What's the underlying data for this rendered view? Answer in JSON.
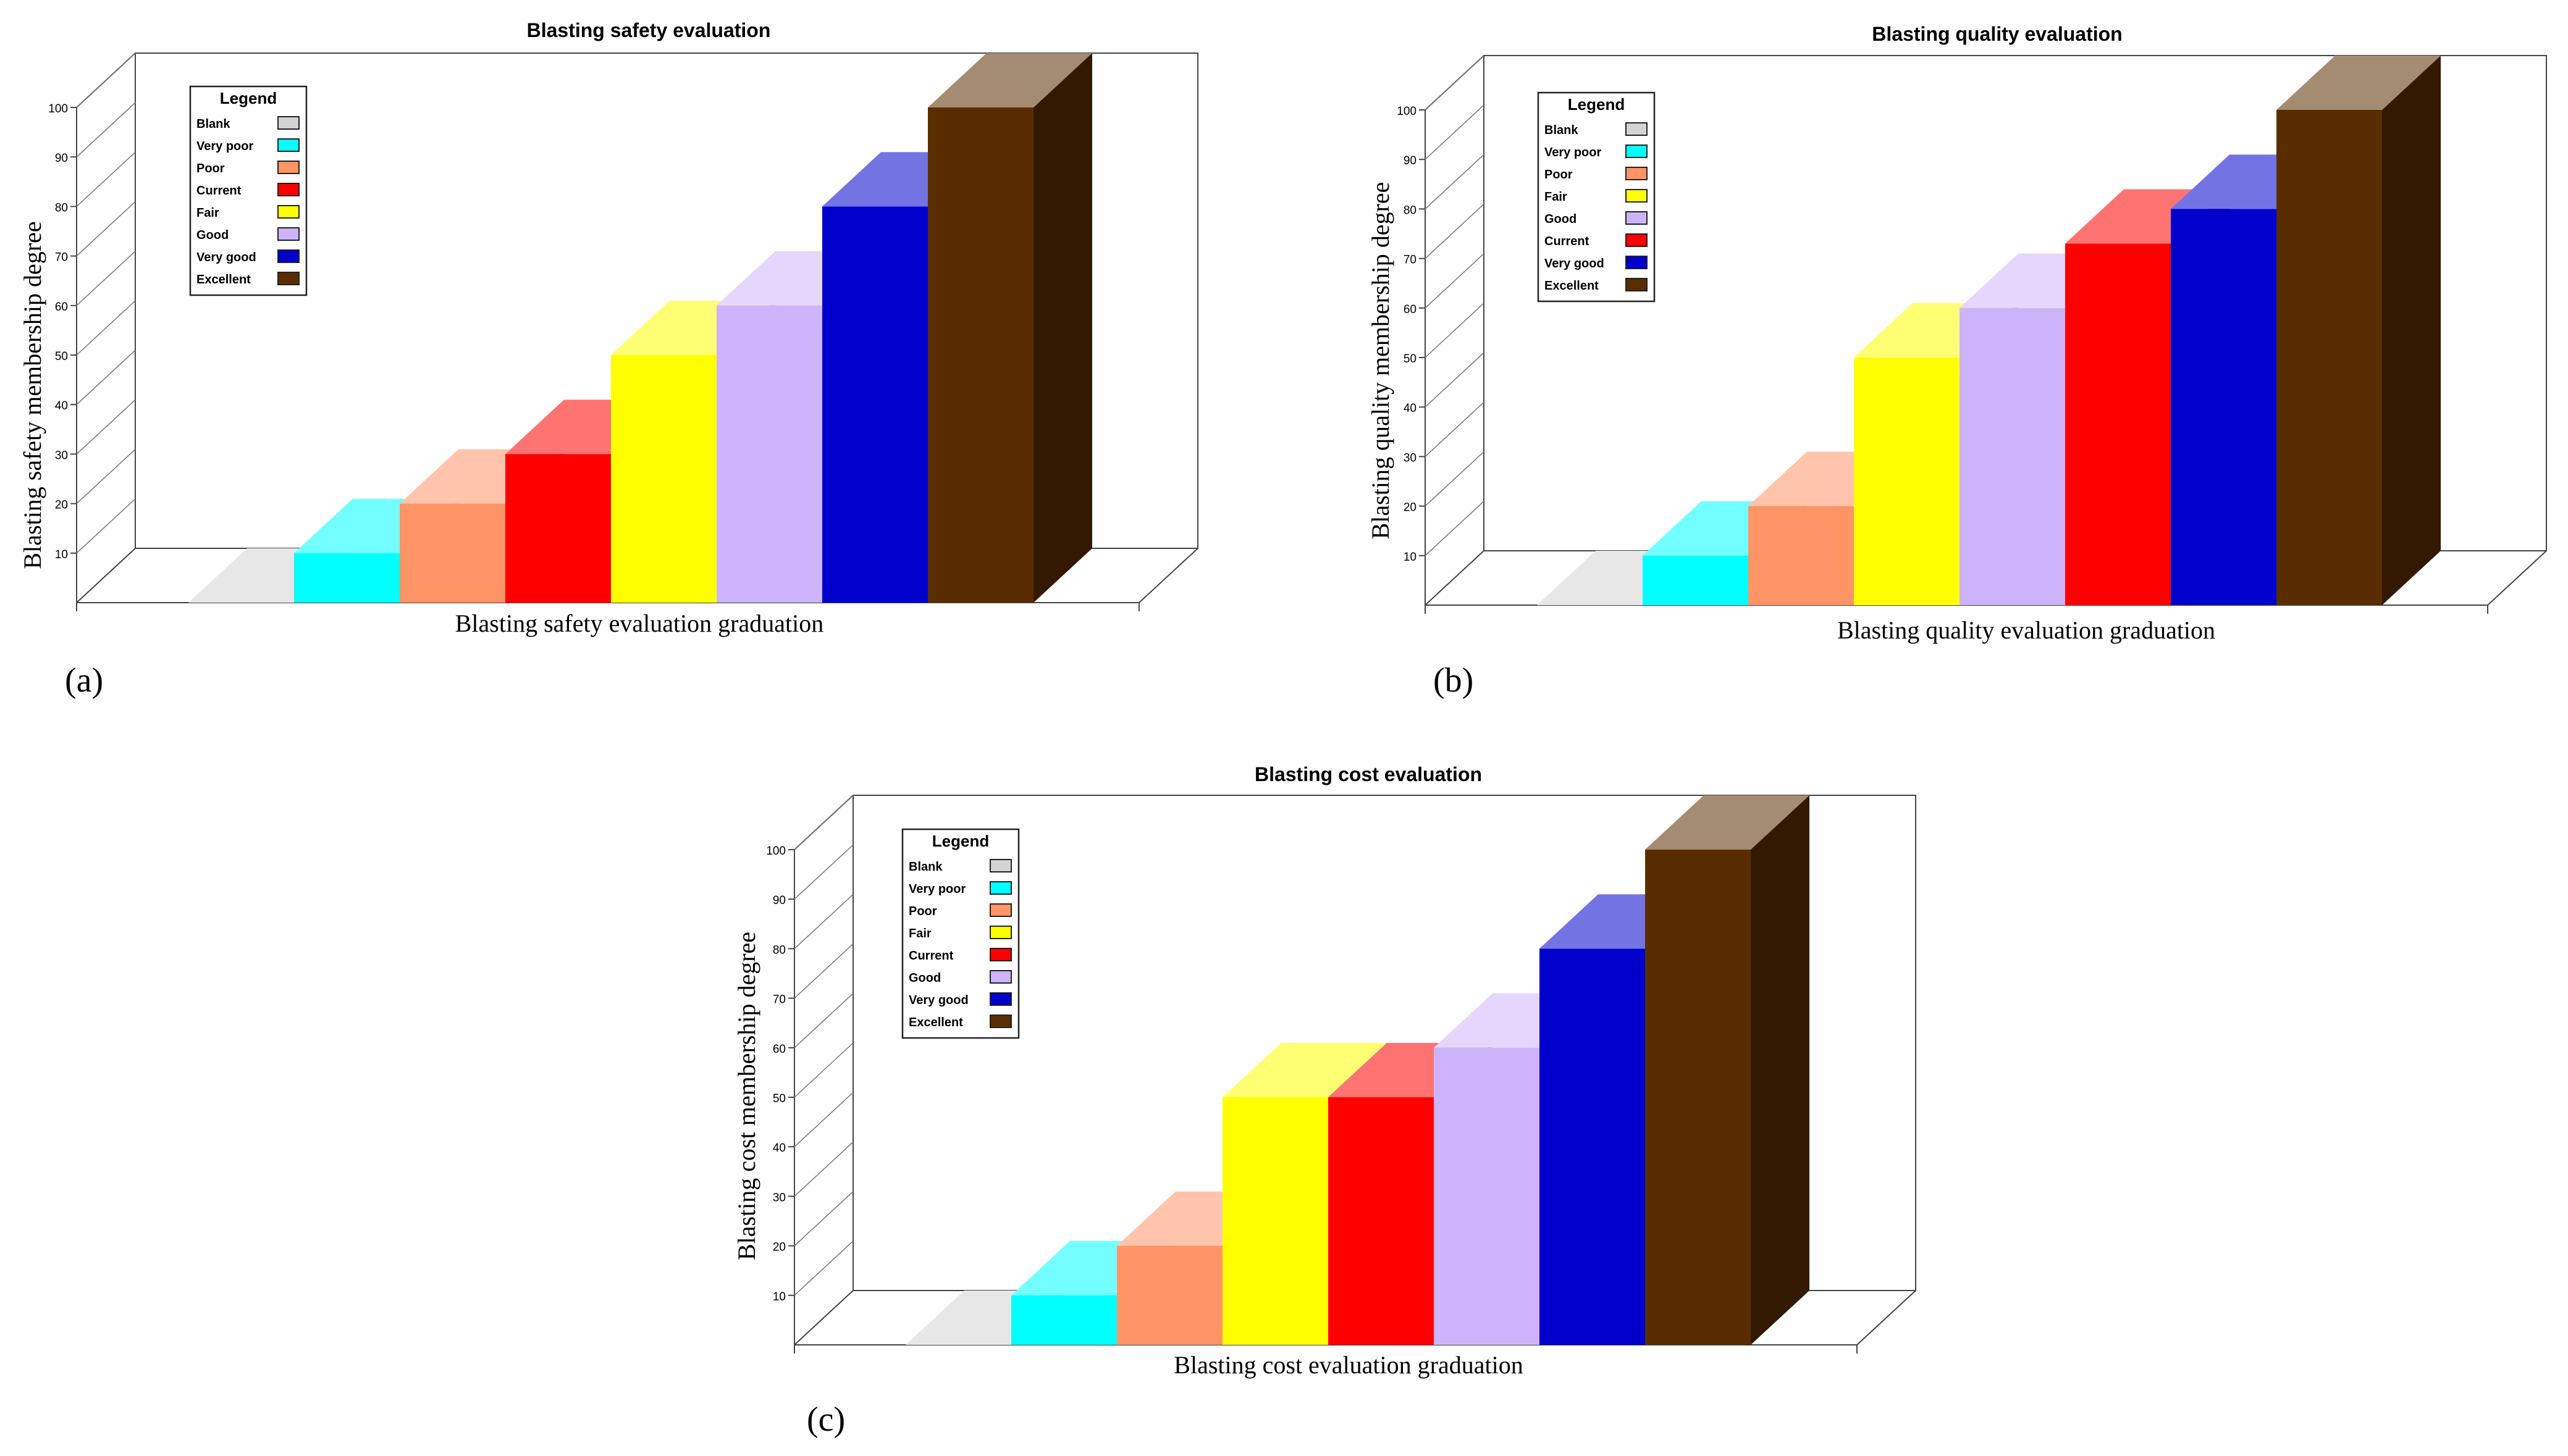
{
  "charts": [
    {
      "label": "(a)",
      "title": "Blasting safety evaluation",
      "xlabel": "Blasting safety evaluation  graduation",
      "ylabel": "Blasting safety membership degree",
      "legend_title": "Legend",
      "legend": [
        {
          "name": "Blank",
          "color": "#d3d3d3"
        },
        {
          "name": "Very poor",
          "color": "#00ffff"
        },
        {
          "name": "Poor",
          "color": "#ff9466"
        },
        {
          "name": "Current",
          "color": "#ff0000"
        },
        {
          "name": "Fair",
          "color": "#ffff00"
        },
        {
          "name": "Good",
          "color": "#cdb4fa"
        },
        {
          "name": "Very good",
          "color": "#0000cd"
        },
        {
          "name": "Excellent",
          "color": "#5a2d00"
        }
      ],
      "bars": [
        {
          "name": "Blank",
          "value": 0,
          "color": "#d3d3d3"
        },
        {
          "name": "Very poor",
          "value": 10,
          "color": "#00ffff"
        },
        {
          "name": "Poor",
          "value": 20,
          "color": "#ff9466"
        },
        {
          "name": "Current",
          "value": 30,
          "color": "#ff0000"
        },
        {
          "name": "Fair",
          "value": 50,
          "color": "#ffff00"
        },
        {
          "name": "Good",
          "value": 60,
          "color": "#cdb4fa"
        },
        {
          "name": "Very good",
          "value": 80,
          "color": "#0000cd"
        },
        {
          "name": "Excellent",
          "value": 100,
          "color": "#5a2d00"
        }
      ]
    },
    {
      "label": "(b)",
      "title": "Blasting quality evaluation",
      "xlabel": "Blasting quality  evaluation graduation",
      "ylabel": "Blasting quality membership degree",
      "legend_title": "Legend",
      "legend": [
        {
          "name": "Blank",
          "color": "#d3d3d3"
        },
        {
          "name": "Very poor",
          "color": "#00ffff"
        },
        {
          "name": "Poor",
          "color": "#ff9466"
        },
        {
          "name": "Fair",
          "color": "#ffff00"
        },
        {
          "name": "Good",
          "color": "#cdb4fa"
        },
        {
          "name": "Current",
          "color": "#ff0000"
        },
        {
          "name": "Very good",
          "color": "#0000cd"
        },
        {
          "name": "Excellent",
          "color": "#5a2d00"
        }
      ],
      "bars": [
        {
          "name": "Blank",
          "value": 0,
          "color": "#d3d3d3"
        },
        {
          "name": "Very poor",
          "value": 10,
          "color": "#00ffff"
        },
        {
          "name": "Poor",
          "value": 20,
          "color": "#ff9466"
        },
        {
          "name": "Fair",
          "value": 50,
          "color": "#ffff00"
        },
        {
          "name": "Good",
          "value": 60,
          "color": "#cdb4fa"
        },
        {
          "name": "Current",
          "value": 73,
          "color": "#ff0000"
        },
        {
          "name": "Very good",
          "value": 80,
          "color": "#0000cd"
        },
        {
          "name": "Excellent",
          "value": 100,
          "color": "#5a2d00"
        }
      ]
    },
    {
      "label": "(c)",
      "title": "Blasting cost evaluation",
      "xlabel": "Blasting cost evaluation graduation",
      "ylabel": "Blasting cost membership degree",
      "legend_title": "Legend",
      "legend": [
        {
          "name": "Blank",
          "color": "#d3d3d3"
        },
        {
          "name": "Very poor",
          "color": "#00ffff"
        },
        {
          "name": "Poor",
          "color": "#ff9466"
        },
        {
          "name": "Fair",
          "color": "#ffff00"
        },
        {
          "name": "Current",
          "color": "#ff0000"
        },
        {
          "name": "Good",
          "color": "#cdb4fa"
        },
        {
          "name": "Very good",
          "color": "#0000cd"
        },
        {
          "name": "Excellent",
          "color": "#5a2d00"
        }
      ],
      "bars": [
        {
          "name": "Blank",
          "value": 0,
          "color": "#d3d3d3"
        },
        {
          "name": "Very poor",
          "value": 10,
          "color": "#00ffff"
        },
        {
          "name": "Poor",
          "value": 20,
          "color": "#ff9466"
        },
        {
          "name": "Fair",
          "value": 50,
          "color": "#ffff00"
        },
        {
          "name": "Current",
          "value": 50,
          "color": "#ff0000"
        },
        {
          "name": "Good",
          "value": 60,
          "color": "#cdb4fa"
        },
        {
          "name": "Very good",
          "value": 80,
          "color": "#0000cd"
        },
        {
          "name": "Excellent",
          "value": 100,
          "color": "#5a2d00"
        }
      ]
    }
  ],
  "chart_data": [
    {
      "type": "bar",
      "title": "Blasting safety evaluation",
      "categories": [
        "Blank",
        "Very poor",
        "Poor",
        "Current",
        "Fair",
        "Good",
        "Very good",
        "Excellent"
      ],
      "values": [
        0,
        10,
        20,
        30,
        50,
        60,
        80,
        100
      ],
      "xlabel": "Blasting safety evaluation  graduation",
      "ylabel": "Blasting safety membership degree",
      "ylim": [
        0,
        100
      ],
      "yticks": [
        10,
        20,
        30,
        40,
        50,
        60,
        70,
        80,
        90,
        100
      ]
    },
    {
      "type": "bar",
      "title": "Blasting quality evaluation",
      "categories": [
        "Blank",
        "Very poor",
        "Poor",
        "Fair",
        "Good",
        "Current",
        "Very good",
        "Excellent"
      ],
      "values": [
        0,
        10,
        20,
        50,
        60,
        73,
        80,
        100
      ],
      "xlabel": "Blasting quality  evaluation graduation",
      "ylabel": "Blasting quality membership degree",
      "ylim": [
        0,
        100
      ],
      "yticks": [
        10,
        20,
        30,
        40,
        50,
        60,
        70,
        80,
        90,
        100
      ]
    },
    {
      "type": "bar",
      "title": "Blasting cost evaluation",
      "categories": [
        "Blank",
        "Very poor",
        "Poor",
        "Fair",
        "Current",
        "Good",
        "Very good",
        "Excellent"
      ],
      "values": [
        0,
        10,
        20,
        50,
        50,
        60,
        80,
        100
      ],
      "xlabel": "Blasting cost evaluation graduation",
      "ylabel": "Blasting cost membership degree",
      "ylim": [
        0,
        100
      ],
      "yticks": [
        10,
        20,
        30,
        40,
        50,
        60,
        70,
        80,
        90,
        100
      ]
    }
  ]
}
